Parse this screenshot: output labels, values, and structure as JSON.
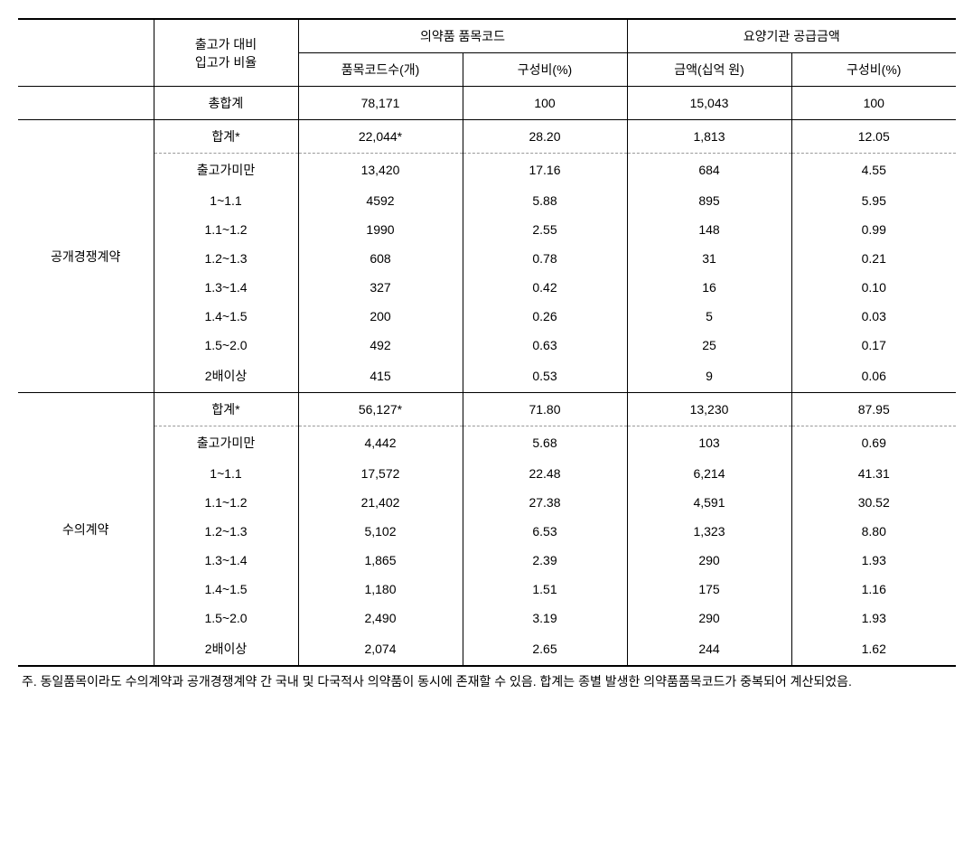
{
  "headers": {
    "ratio_label": "출고가 대비\n입고가 비율",
    "group1": "의약품 품목코드",
    "group2": "요양기관 공급금액",
    "col1": "품목코드수(개)",
    "col2": "구성비(%)",
    "col3": "금액(십억 원)",
    "col4": "구성비(%)"
  },
  "total": {
    "label": "총합계",
    "c1": "78,171",
    "c2": "100",
    "c3": "15,043",
    "c4": "100"
  },
  "section1": {
    "title": "공개경쟁계약",
    "subtotal": {
      "label": "합계*",
      "c1": "22,044*",
      "c2": "28.20",
      "c3": "1,813",
      "c4": "12.05"
    },
    "rows": [
      {
        "label": "출고가미만",
        "c1": "13,420",
        "c2": "17.16",
        "c3": "684",
        "c4": "4.55"
      },
      {
        "label": "1~1.1",
        "c1": "4592",
        "c2": "5.88",
        "c3": "895",
        "c4": "5.95"
      },
      {
        "label": "1.1~1.2",
        "c1": "1990",
        "c2": "2.55",
        "c3": "148",
        "c4": "0.99"
      },
      {
        "label": "1.2~1.3",
        "c1": "608",
        "c2": "0.78",
        "c3": "31",
        "c4": "0.21"
      },
      {
        "label": "1.3~1.4",
        "c1": "327",
        "c2": "0.42",
        "c3": "16",
        "c4": "0.10"
      },
      {
        "label": "1.4~1.5",
        "c1": "200",
        "c2": "0.26",
        "c3": "5",
        "c4": "0.03"
      },
      {
        "label": "1.5~2.0",
        "c1": "492",
        "c2": "0.63",
        "c3": "25",
        "c4": "0.17"
      },
      {
        "label": "2배이상",
        "c1": "415",
        "c2": "0.53",
        "c3": "9",
        "c4": "0.06"
      }
    ]
  },
  "section2": {
    "title": "수의계약",
    "subtotal": {
      "label": "합계*",
      "c1": "56,127*",
      "c2": "71.80",
      "c3": "13,230",
      "c4": "87.95"
    },
    "rows": [
      {
        "label": "출고가미만",
        "c1": "4,442",
        "c2": "5.68",
        "c3": "103",
        "c4": "0.69"
      },
      {
        "label": "1~1.1",
        "c1": "17,572",
        "c2": "22.48",
        "c3": "6,214",
        "c4": "41.31"
      },
      {
        "label": "1.1~1.2",
        "c1": "21,402",
        "c2": "27.38",
        "c3": "4,591",
        "c4": "30.52"
      },
      {
        "label": "1.2~1.3",
        "c1": "5,102",
        "c2": "6.53",
        "c3": "1,323",
        "c4": "8.80"
      },
      {
        "label": "1.3~1.4",
        "c1": "1,865",
        "c2": "2.39",
        "c3": "290",
        "c4": "1.93"
      },
      {
        "label": "1.4~1.5",
        "c1": "1,180",
        "c2": "1.51",
        "c3": "175",
        "c4": "1.16"
      },
      {
        "label": "1.5~2.0",
        "c1": "2,490",
        "c2": "3.19",
        "c3": "290",
        "c4": "1.93"
      },
      {
        "label": "2배이상",
        "c1": "2,074",
        "c2": "2.65",
        "c3": "244",
        "c4": "1.62"
      }
    ]
  },
  "footnote": "주. 동일품목이라도 수의계약과 공개경쟁계약 간 국내 및 다국적사 의약품이 동시에 존재할 수 있음. 합계는 종별 발생한 의약품품목코드가 중복되어 계산되었음."
}
